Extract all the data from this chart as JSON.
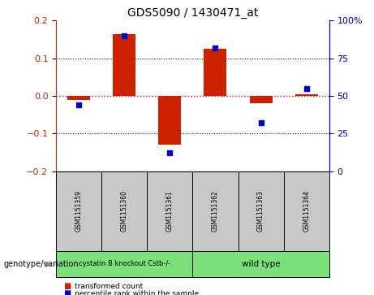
{
  "title": "GDS5090 / 1430471_at",
  "samples": [
    "GSM1151359",
    "GSM1151360",
    "GSM1151361",
    "GSM1151362",
    "GSM1151363",
    "GSM1151364"
  ],
  "x_positions": [
    0,
    1,
    2,
    3,
    4,
    5
  ],
  "red_bars": [
    -0.01,
    0.165,
    -0.13,
    0.125,
    -0.02,
    0.005
  ],
  "blue_dots_pct": [
    44,
    90,
    12,
    82,
    32,
    55
  ],
  "ylim_left": [
    -0.2,
    0.2
  ],
  "ylim_right": [
    0,
    100
  ],
  "yticks_left": [
    -0.2,
    -0.1,
    0.0,
    0.1,
    0.2
  ],
  "yticks_right": [
    0,
    25,
    50,
    75,
    100
  ],
  "ytick_labels_right": [
    "0",
    "25",
    "50",
    "75",
    "100%"
  ],
  "red_color": "#cc2200",
  "blue_color": "#0000cc",
  "group1_label": "cystatin B knockout Cstb-/-",
  "group2_label": "wild type",
  "group1_color": "#7AE07A",
  "group2_color": "#7AE07A",
  "sample_box_color": "#c8c8c8",
  "genotype_label": "genotype/variation",
  "legend1": "transformed count",
  "legend2": "percentile rank within the sample",
  "dotted_line_color": "#cc0000",
  "bar_width": 0.5,
  "xlim": [
    -0.5,
    5.5
  ]
}
